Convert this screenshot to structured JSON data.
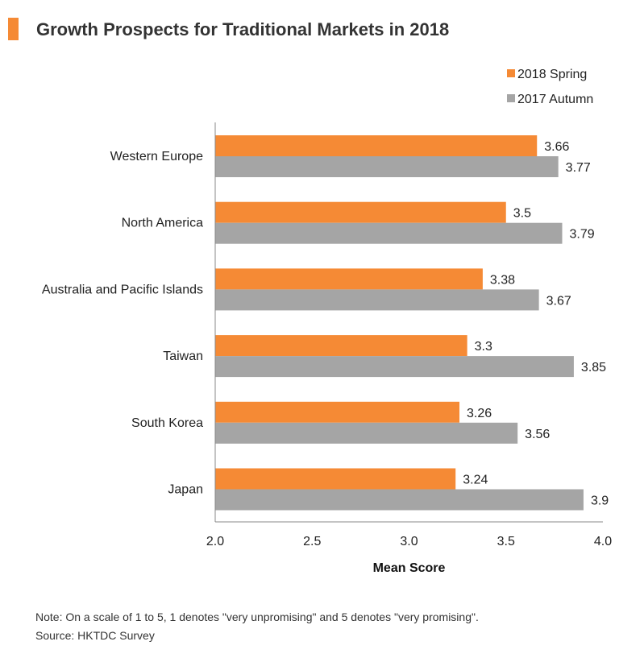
{
  "title": "Growth Prospects for Traditional Markets in 2018",
  "note": "Note: On a scale of 1 to 5, 1 denotes \"very unpromising\" and 5 denotes \"very promising\".",
  "source": "Source: HKTDC Survey",
  "colors": {
    "accent": "#F58A35",
    "spring": "#F58A35",
    "autumn": "#A5A5A5",
    "axis": "#888888"
  },
  "chart_data": {
    "type": "bar",
    "orientation": "horizontal",
    "title": "Growth Prospects for Traditional Markets in 2018",
    "xlabel": "Mean Score",
    "ylabel": "",
    "xlim": [
      2.0,
      4.0
    ],
    "ticks": [
      "2.0",
      "2.5",
      "3.0",
      "3.5",
      "4.0"
    ],
    "grid": false,
    "legend_position": "top-right",
    "categories": [
      "Western Europe",
      "North America",
      "Australia and Pacific Islands",
      "Taiwan",
      "South Korea",
      "Japan"
    ],
    "series": [
      {
        "name": "2018 Spring",
        "color": "#F58A35",
        "values": [
          3.66,
          3.5,
          3.38,
          3.3,
          3.26,
          3.24
        ]
      },
      {
        "name": "2017 Autumn",
        "color": "#A5A5A5",
        "values": [
          3.77,
          3.79,
          3.67,
          3.85,
          3.56,
          3.9
        ]
      }
    ]
  }
}
